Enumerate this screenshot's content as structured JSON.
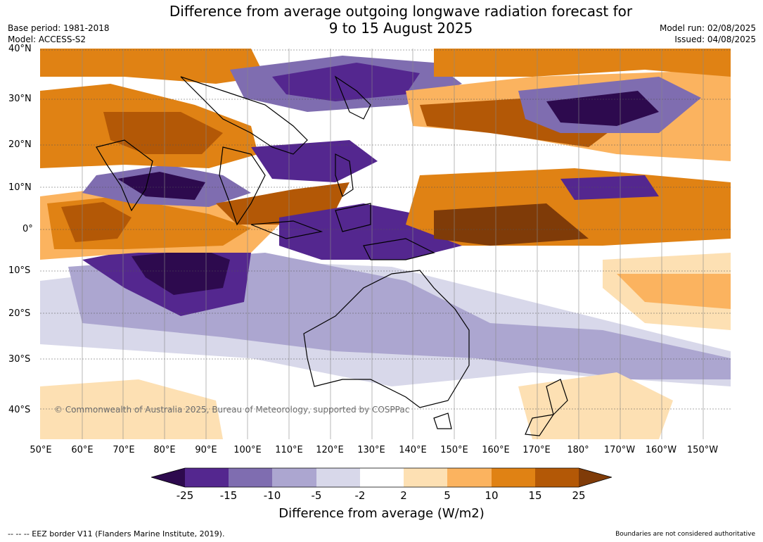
{
  "header": {
    "title_line1": "Difference from average outgoing longwave radiation forecast for",
    "title_line2": "9 to 15 August 2025",
    "base_period": "Base period: 1981-2018",
    "model": "Model: ACCESS-S2",
    "model_run": "Model run: 02/08/2025",
    "issued": "Issued: 04/08/2025"
  },
  "axes": {
    "lat_labels": [
      "40°N",
      "30°N",
      "20°N",
      "10°N",
      "0°",
      "10°S",
      "20°S",
      "30°S",
      "40°S"
    ],
    "lon_labels": [
      "50°E",
      "60°E",
      "70°E",
      "80°E",
      "90°E",
      "100°E",
      "110°E",
      "120°E",
      "130°E",
      "140°E",
      "150°E",
      "160°E",
      "170°E",
      "180°",
      "170°W",
      "160°W",
      "150°W"
    ]
  },
  "map": {
    "copyright": "© Commonwealth of Australia 2025, Bureau of Meteorology, supported by COSPPac"
  },
  "legend": {
    "tick_labels": [
      "-25",
      "-15",
      "-10",
      "-5",
      "-2",
      "2",
      "5",
      "10",
      "15",
      "25"
    ],
    "colors": [
      "#2d0a4e",
      "#54278f",
      "#7f6db0",
      "#aca6d0",
      "#d8d8ea",
      "#ffffff",
      "#fde0b3",
      "#fbb35f",
      "#e08214",
      "#b35806",
      "#7f3b08"
    ],
    "title": "Difference from average (W/m2)"
  },
  "footer": {
    "eez_note": "--  --  -- EEZ border V11 (Flanders Marine Institute, 2019).",
    "disclaimer": "Boundaries are not considered authoritative"
  }
}
